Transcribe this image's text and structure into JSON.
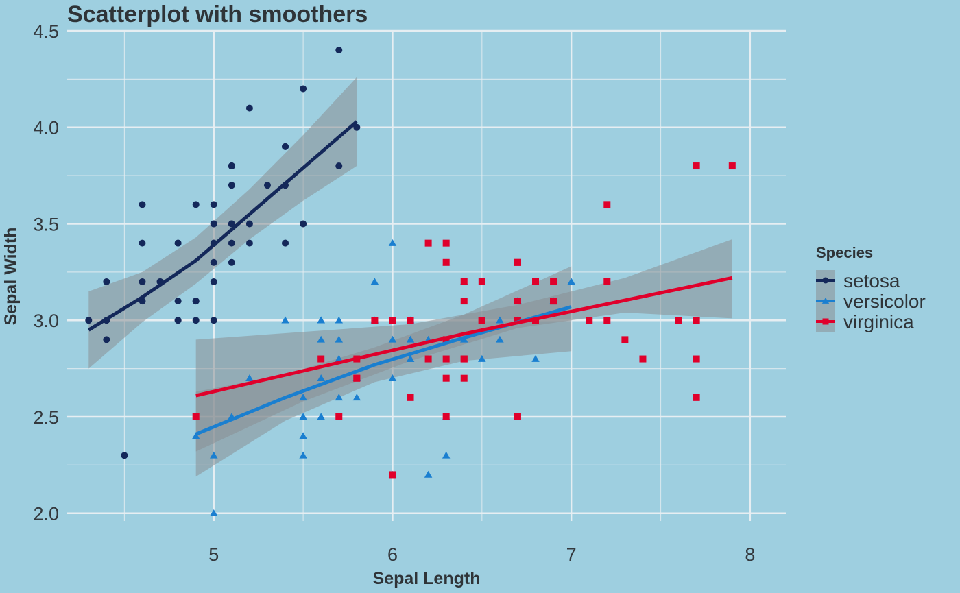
{
  "chart_data": {
    "type": "scatter",
    "title": "Scatterplot with smoothers",
    "xlabel": "Sepal Length",
    "ylabel": "Sepal Width",
    "xlim": [
      4.18,
      8.2
    ],
    "ylim": [
      1.96,
      4.5
    ],
    "x_ticks": [
      5,
      6,
      7,
      8
    ],
    "y_ticks": [
      "2.0",
      "2.5",
      "3.0",
      "3.5",
      "4.0",
      "4.5"
    ],
    "grid": true,
    "legend": {
      "title": "Species",
      "position": "right"
    },
    "colors": {
      "background": "#9ecfe0",
      "grid": "#e6eef2",
      "band": "#8a8f93"
    },
    "series": [
      {
        "name": "setosa",
        "marker": "circle",
        "color": "#14285a",
        "points": [
          [
            5.1,
            3.5
          ],
          [
            4.9,
            3.0
          ],
          [
            4.7,
            3.2
          ],
          [
            4.6,
            3.1
          ],
          [
            5.0,
            3.6
          ],
          [
            5.4,
            3.9
          ],
          [
            4.6,
            3.4
          ],
          [
            5.0,
            3.4
          ],
          [
            4.4,
            2.9
          ],
          [
            4.9,
            3.1
          ],
          [
            5.4,
            3.7
          ],
          [
            4.8,
            3.4
          ],
          [
            4.8,
            3.0
          ],
          [
            4.3,
            3.0
          ],
          [
            5.8,
            4.0
          ],
          [
            5.7,
            4.4
          ],
          [
            5.4,
            3.9
          ],
          [
            5.1,
            3.5
          ],
          [
            5.7,
            3.8
          ],
          [
            5.1,
            3.8
          ],
          [
            5.4,
            3.4
          ],
          [
            5.1,
            3.7
          ],
          [
            4.6,
            3.6
          ],
          [
            5.1,
            3.3
          ],
          [
            4.8,
            3.4
          ],
          [
            5.0,
            3.0
          ],
          [
            5.0,
            3.4
          ],
          [
            5.2,
            3.5
          ],
          [
            5.2,
            3.4
          ],
          [
            4.7,
            3.2
          ],
          [
            4.8,
            3.1
          ],
          [
            5.4,
            3.4
          ],
          [
            5.2,
            4.1
          ],
          [
            5.5,
            4.2
          ],
          [
            4.9,
            3.1
          ],
          [
            5.0,
            3.2
          ],
          [
            5.5,
            3.5
          ],
          [
            4.9,
            3.6
          ],
          [
            4.4,
            3.0
          ],
          [
            5.1,
            3.4
          ],
          [
            5.0,
            3.5
          ],
          [
            4.5,
            2.3
          ],
          [
            4.4,
            3.2
          ],
          [
            5.0,
            3.5
          ],
          [
            5.1,
            3.8
          ],
          [
            4.8,
            3.0
          ],
          [
            5.1,
            3.8
          ],
          [
            4.6,
            3.2
          ],
          [
            5.3,
            3.7
          ],
          [
            5.0,
            3.3
          ]
        ],
        "smooth": [
          [
            4.3,
            2.95
          ],
          [
            4.6,
            3.12
          ],
          [
            4.9,
            3.31
          ],
          [
            5.2,
            3.55
          ],
          [
            5.5,
            3.79
          ],
          [
            5.8,
            4.03
          ]
        ],
        "band_upper": [
          [
            4.3,
            3.15
          ],
          [
            4.6,
            3.25
          ],
          [
            4.9,
            3.43
          ],
          [
            5.2,
            3.68
          ],
          [
            5.5,
            3.96
          ],
          [
            5.8,
            4.26
          ]
        ],
        "band_lower": [
          [
            4.3,
            2.75
          ],
          [
            4.6,
            2.99
          ],
          [
            4.9,
            3.19
          ],
          [
            5.2,
            3.42
          ],
          [
            5.5,
            3.62
          ],
          [
            5.8,
            3.8
          ]
        ]
      },
      {
        "name": "versicolor",
        "marker": "triangle",
        "color": "#1a7fd0",
        "points": [
          [
            7.0,
            3.2
          ],
          [
            6.4,
            3.2
          ],
          [
            6.9,
            3.1
          ],
          [
            5.5,
            2.3
          ],
          [
            6.5,
            2.8
          ],
          [
            5.7,
            2.8
          ],
          [
            6.3,
            3.3
          ],
          [
            4.9,
            2.4
          ],
          [
            6.6,
            2.9
          ],
          [
            5.2,
            2.7
          ],
          [
            5.0,
            2.0
          ],
          [
            5.9,
            3.0
          ],
          [
            6.0,
            2.2
          ],
          [
            6.1,
            2.9
          ],
          [
            5.6,
            2.9
          ],
          [
            6.7,
            3.1
          ],
          [
            5.6,
            3.0
          ],
          [
            5.8,
            2.7
          ],
          [
            6.2,
            2.2
          ],
          [
            5.6,
            2.5
          ],
          [
            5.9,
            3.2
          ],
          [
            6.1,
            2.8
          ],
          [
            6.3,
            2.5
          ],
          [
            6.1,
            2.8
          ],
          [
            6.4,
            2.9
          ],
          [
            6.6,
            3.0
          ],
          [
            6.8,
            2.8
          ],
          [
            6.7,
            3.0
          ],
          [
            6.0,
            2.9
          ],
          [
            5.7,
            2.6
          ],
          [
            5.5,
            2.4
          ],
          [
            5.5,
            2.4
          ],
          [
            5.8,
            2.7
          ],
          [
            6.0,
            2.7
          ],
          [
            5.4,
            3.0
          ],
          [
            6.0,
            3.4
          ],
          [
            6.7,
            3.1
          ],
          [
            6.3,
            2.3
          ],
          [
            5.6,
            3.0
          ],
          [
            5.5,
            2.5
          ],
          [
            5.5,
            2.6
          ],
          [
            6.1,
            3.0
          ],
          [
            5.8,
            2.6
          ],
          [
            5.0,
            2.3
          ],
          [
            5.6,
            2.7
          ],
          [
            5.7,
            3.0
          ],
          [
            5.7,
            2.9
          ],
          [
            6.2,
            2.9
          ],
          [
            5.1,
            2.5
          ],
          [
            5.7,
            2.8
          ]
        ],
        "smooth": [
          [
            4.9,
            2.41
          ],
          [
            5.4,
            2.6
          ],
          [
            5.9,
            2.77
          ],
          [
            6.4,
            2.91
          ],
          [
            7.0,
            3.07
          ]
        ],
        "band_upper": [
          [
            4.9,
            2.63
          ],
          [
            5.4,
            2.72
          ],
          [
            5.9,
            2.86
          ],
          [
            6.4,
            3.03
          ],
          [
            7.0,
            3.28
          ]
        ],
        "band_lower": [
          [
            4.9,
            2.19
          ],
          [
            5.4,
            2.48
          ],
          [
            5.9,
            2.68
          ],
          [
            6.4,
            2.79
          ],
          [
            7.0,
            2.84
          ]
        ]
      },
      {
        "name": "virginica",
        "marker": "square",
        "color": "#e0002b",
        "points": [
          [
            6.3,
            3.3
          ],
          [
            5.8,
            2.7
          ],
          [
            7.1,
            3.0
          ],
          [
            6.3,
            2.9
          ],
          [
            6.5,
            3.0
          ],
          [
            7.6,
            3.0
          ],
          [
            4.9,
            2.5
          ],
          [
            7.3,
            2.9
          ],
          [
            6.7,
            2.5
          ],
          [
            7.2,
            3.6
          ],
          [
            6.5,
            3.2
          ],
          [
            6.4,
            2.7
          ],
          [
            6.8,
            3.0
          ],
          [
            5.7,
            2.5
          ],
          [
            5.8,
            2.8
          ],
          [
            6.4,
            3.2
          ],
          [
            6.5,
            3.0
          ],
          [
            7.7,
            3.8
          ],
          [
            7.7,
            2.6
          ],
          [
            6.0,
            2.2
          ],
          [
            6.9,
            3.2
          ],
          [
            5.6,
            2.8
          ],
          [
            7.7,
            2.8
          ],
          [
            6.3,
            2.7
          ],
          [
            6.7,
            3.3
          ],
          [
            7.2,
            3.2
          ],
          [
            6.2,
            2.8
          ],
          [
            6.1,
            3.0
          ],
          [
            6.4,
            2.8
          ],
          [
            7.2,
            3.0
          ],
          [
            7.4,
            2.8
          ],
          [
            7.9,
            3.8
          ],
          [
            6.4,
            2.8
          ],
          [
            6.3,
            2.8
          ],
          [
            6.1,
            2.6
          ],
          [
            7.7,
            3.0
          ],
          [
            6.3,
            3.4
          ],
          [
            6.4,
            3.1
          ],
          [
            6.0,
            3.0
          ],
          [
            6.9,
            3.1
          ],
          [
            6.7,
            3.1
          ],
          [
            6.9,
            3.1
          ],
          [
            5.8,
            2.7
          ],
          [
            6.8,
            3.2
          ],
          [
            6.7,
            3.3
          ],
          [
            6.7,
            3.0
          ],
          [
            6.3,
            2.5
          ],
          [
            6.5,
            3.0
          ],
          [
            6.2,
            3.4
          ],
          [
            5.9,
            3.0
          ]
        ],
        "smooth": [
          [
            4.9,
            2.61
          ],
          [
            6.4,
            2.93
          ],
          [
            7.9,
            3.22
          ]
        ],
        "band_upper": [
          [
            4.9,
            2.9
          ],
          [
            5.5,
            2.94
          ],
          [
            6.1,
            2.98
          ],
          [
            6.7,
            3.08
          ],
          [
            7.3,
            3.22
          ],
          [
            7.9,
            3.42
          ]
        ],
        "band_lower": [
          [
            4.9,
            2.32
          ],
          [
            5.5,
            2.58
          ],
          [
            6.1,
            2.79
          ],
          [
            6.7,
            2.96
          ],
          [
            7.3,
            3.04
          ],
          [
            7.9,
            3.01
          ]
        ]
      }
    ]
  }
}
